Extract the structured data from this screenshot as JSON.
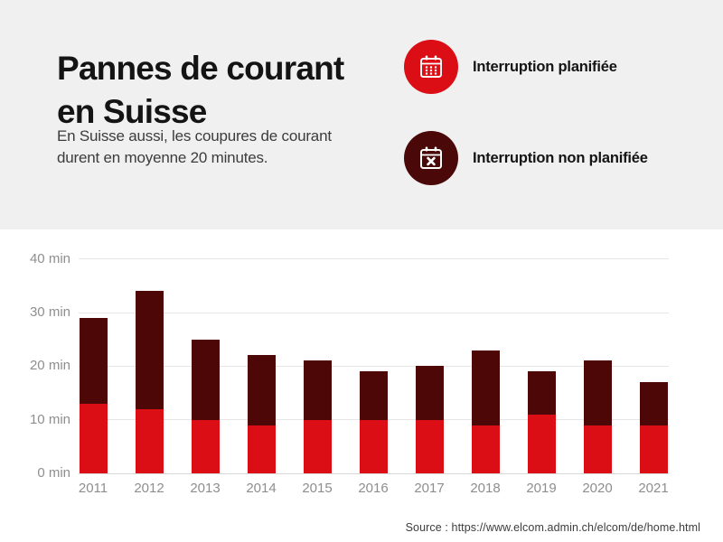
{
  "page": {
    "background": "#ffffff",
    "header_background": "#f0f0f0"
  },
  "header": {
    "title": "Pannes de courant\nen Suisse",
    "subtitle": "En Suisse aussi, les coupures de courant\ndurent en moyenne 20 minutes.",
    "legend": [
      {
        "label": "Interruption planifiée",
        "icon": "calendar-icon",
        "color": "#dc0e15"
      },
      {
        "label": "Interruption non planifiée",
        "icon": "calendar-x-icon",
        "color": "#4a0808"
      }
    ]
  },
  "chart_data": {
    "type": "bar",
    "stacked": true,
    "title": "Pannes de courant en Suisse",
    "categories": [
      "2011",
      "2012",
      "2013",
      "2014",
      "2015",
      "2016",
      "2017",
      "2018",
      "2019",
      "2020",
      "2021"
    ],
    "series": [
      {
        "name": "Interruption planifiée",
        "color": "#dc0e15",
        "values": [
          13,
          12,
          10,
          9,
          10,
          10,
          10,
          9,
          11,
          9,
          9
        ]
      },
      {
        "name": "Interruption non planifiée",
        "color": "#4d0707",
        "values": [
          16,
          22,
          15,
          13,
          11,
          9,
          10,
          14,
          8,
          12,
          8
        ]
      }
    ],
    "totals_min": [
      29,
      34,
      25,
      22,
      21,
      19,
      20,
      23,
      19,
      21,
      17
    ],
    "unit": "min",
    "ylim": [
      0,
      40
    ],
    "yticks": [
      "0 min",
      "10 min",
      "20 min",
      "30 min",
      "40 min"
    ],
    "ytick_values": [
      0,
      10,
      20,
      30,
      40
    ],
    "grid": true,
    "legend_position": "top-right",
    "xlabel": "",
    "ylabel": ""
  },
  "footer": {
    "source": "Source : https://www.elcom.admin.ch/elcom/de/home.html"
  }
}
